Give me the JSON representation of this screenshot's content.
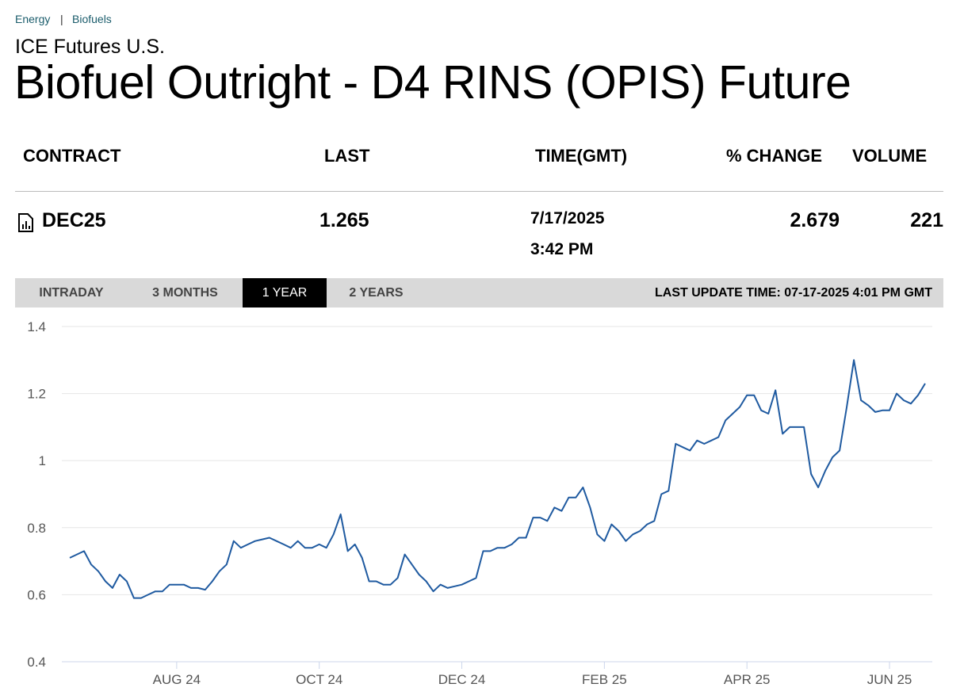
{
  "breadcrumb": [
    "Energy",
    "Biofuels"
  ],
  "header": {
    "exchange": "ICE Futures U.S.",
    "title": "Biofuel Outright - D4 RINS (OPIS) Future"
  },
  "table": {
    "columns": [
      "CONTRACT",
      "LAST",
      "TIME(GMT)",
      "% CHANGE",
      "VOLUME"
    ],
    "rows": [
      [
        "DEC25",
        "1.265",
        [
          "7/17/2025",
          "3:42 PM"
        ],
        "2.679",
        "221"
      ]
    ]
  },
  "tabs": [
    "INTRADAY",
    "3 MONTHS",
    "1 YEAR",
    "2 YEARS"
  ],
  "active_tab": 2,
  "last_update": "LAST UPDATE TIME: 07-17-2025 4:01 PM GMT",
  "chart_data": {
    "type": "line",
    "color": "#1f5aa0",
    "grid": true,
    "ylim": [
      0.4,
      1.4
    ],
    "yticks": [
      0.4,
      0.6,
      0.8,
      1,
      1.2,
      1.4
    ],
    "categories": [
      null,
      null,
      null,
      null,
      null,
      null,
      null,
      null,
      null,
      null,
      null,
      null,
      null,
      null,
      null,
      "AUG 24",
      null,
      null,
      null,
      null,
      null,
      null,
      null,
      null,
      null,
      null,
      null,
      null,
      null,
      null,
      null,
      null,
      null,
      null,
      null,
      "OCT 24",
      null,
      null,
      null,
      null,
      null,
      null,
      null,
      null,
      null,
      null,
      null,
      null,
      null,
      null,
      null,
      null,
      null,
      null,
      null,
      "DEC 24",
      null,
      null,
      null,
      null,
      null,
      null,
      null,
      null,
      null,
      null,
      null,
      null,
      null,
      null,
      null,
      null,
      null,
      null,
      null,
      "FEB 25",
      null,
      null,
      null,
      null,
      null,
      null,
      null,
      null,
      null,
      null,
      null,
      null,
      null,
      null,
      null,
      null,
      null,
      null,
      null,
      "APR 25",
      null,
      null,
      null,
      null,
      null,
      null,
      null,
      null,
      null,
      null,
      null,
      null,
      null,
      null,
      null,
      null,
      null,
      null,
      null,
      "JUN 25",
      null,
      null,
      null,
      null,
      null
    ],
    "values": [
      0.71,
      0.72,
      0.73,
      0.69,
      0.67,
      0.64,
      0.62,
      0.66,
      0.64,
      0.59,
      0.59,
      0.6,
      0.61,
      0.61,
      0.63,
      0.63,
      0.63,
      0.62,
      0.62,
      0.615,
      0.64,
      0.67,
      0.69,
      0.76,
      0.74,
      0.75,
      0.76,
      0.765,
      0.77,
      0.76,
      0.75,
      0.74,
      0.76,
      0.74,
      0.74,
      0.75,
      0.74,
      0.78,
      0.84,
      0.73,
      0.75,
      0.71,
      0.64,
      0.64,
      0.63,
      0.63,
      0.65,
      0.72,
      0.69,
      0.66,
      0.64,
      0.61,
      0.63,
      0.62,
      0.625,
      0.63,
      0.64,
      0.65,
      0.73,
      0.73,
      0.74,
      0.74,
      0.75,
      0.77,
      0.77,
      0.83,
      0.83,
      0.82,
      0.86,
      0.85,
      0.89,
      0.89,
      0.92,
      0.86,
      0.78,
      0.76,
      0.81,
      0.79,
      0.76,
      0.78,
      0.79,
      0.81,
      0.82,
      0.9,
      0.91,
      1.05,
      1.04,
      1.03,
      1.06,
      1.05,
      1.06,
      1.07,
      1.12,
      1.14,
      1.16,
      1.195,
      1.195,
      1.15,
      1.14,
      1.21,
      1.08,
      1.1,
      1.1,
      1.1,
      0.96,
      0.92,
      0.97,
      1.01,
      1.03,
      1.16,
      1.3,
      1.18,
      1.165,
      1.145,
      1.15,
      1.15,
      1.2,
      1.18,
      1.17,
      1.195,
      1.23
    ]
  }
}
